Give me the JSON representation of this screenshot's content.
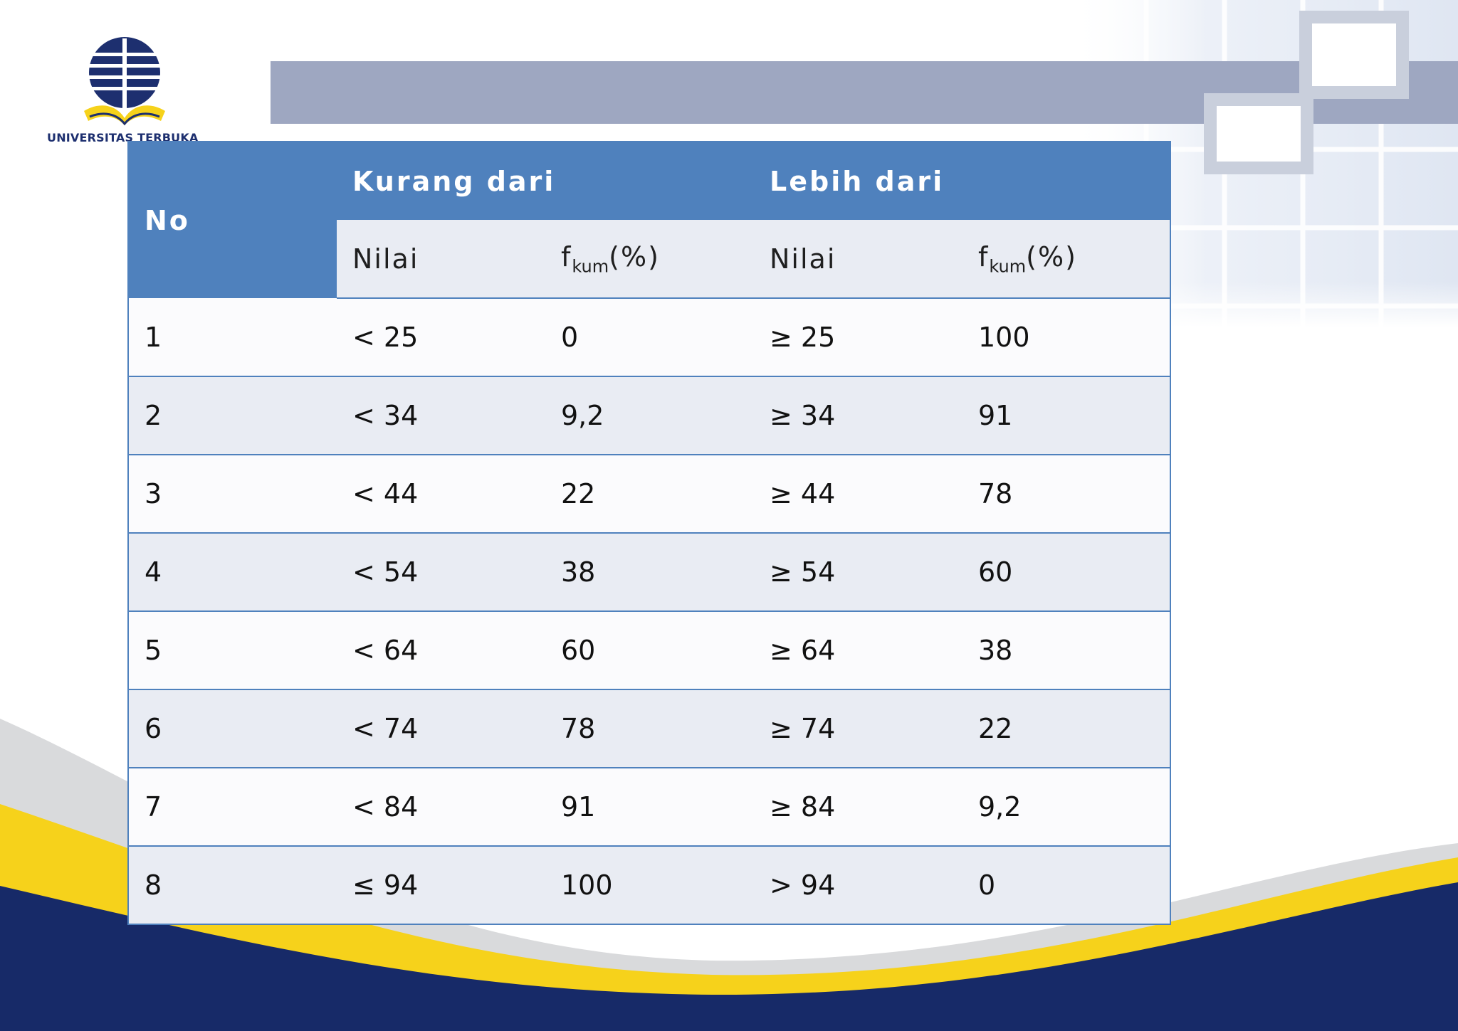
{
  "logo": {
    "text": "UNIVERSITAS TERBUKA"
  },
  "colors": {
    "header_blue": "#4f81bd",
    "band_gray": "#9ea7c1",
    "swoosh_yellow": "#f6d21b",
    "swoosh_navy": "#172a68"
  },
  "table": {
    "header": {
      "no": "No",
      "kurang_dari": "Kurang dari",
      "lebih_dari": "Lebih dari",
      "nilai": "Nilai",
      "fkum_f": "f",
      "fkum_sub": "kum",
      "fkum_pct": "(%)"
    },
    "rows": [
      {
        "no": "1",
        "k_nilai": "< 25",
        "k_fkum": "0",
        "l_nilai": "≥ 25",
        "l_fkum": "100"
      },
      {
        "no": "2",
        "k_nilai": "< 34",
        "k_fkum": "9,2",
        "l_nilai": "≥ 34",
        "l_fkum": "91"
      },
      {
        "no": "3",
        "k_nilai": "< 44",
        "k_fkum": "22",
        "l_nilai": "≥ 44",
        "l_fkum": "78"
      },
      {
        "no": "4",
        "k_nilai": "< 54",
        "k_fkum": "38",
        "l_nilai": "≥ 54",
        "l_fkum": "60"
      },
      {
        "no": "5",
        "k_nilai": "< 64",
        "k_fkum": "60",
        "l_nilai": "≥ 64",
        "l_fkum": "38"
      },
      {
        "no": "6",
        "k_nilai": "< 74",
        "k_fkum": "78",
        "l_nilai": "≥ 74",
        "l_fkum": "22"
      },
      {
        "no": "7",
        "k_nilai": "< 84",
        "k_fkum": "91",
        "l_nilai": "≥ 84",
        "l_fkum": "9,2"
      },
      {
        "no": "8",
        "k_nilai": "≤ 94",
        "k_fkum": "100",
        "l_nilai": "> 94",
        "l_fkum": "0"
      }
    ]
  }
}
